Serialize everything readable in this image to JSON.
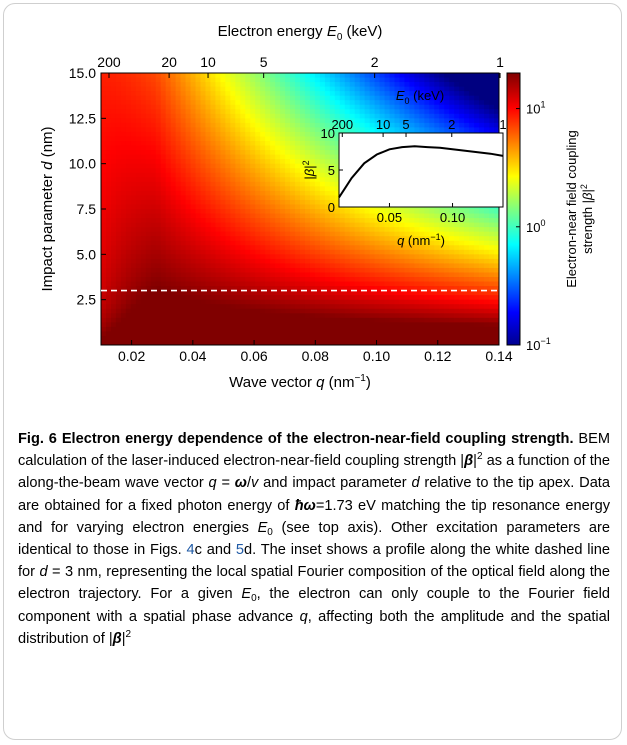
{
  "chart_data": {
    "type": "heatmap",
    "x_axis": {
      "label_prefix": "Wave vector ",
      "symbol": "q",
      "unit": " (nm",
      "unit_exp": "−1",
      "unit_close": ")",
      "range": [
        0.01,
        0.14
      ],
      "ticks": [
        "0.02",
        "0.04",
        "0.06",
        "0.08",
        "0.10",
        "0.12",
        "0.14"
      ]
    },
    "y_axis": {
      "label_prefix": "Impact parameter ",
      "symbol": "d",
      "unit": " (nm)",
      "range": [
        0.0,
        15.0
      ],
      "ticks": [
        "2.5",
        "5.0",
        "7.5",
        "10.0",
        "12.5",
        "15.0"
      ]
    },
    "top_axis": {
      "label_prefix": "Electron energy ",
      "symbol": "E",
      "subscript": "0",
      "unit": " (keV)",
      "ticks": [
        "200",
        "20",
        "10",
        "5",
        "2",
        "1"
      ]
    },
    "colorbar": {
      "label_line1": "Electron-near field coupling",
      "label_line2_prefix": "strength |",
      "label_symbol": "β",
      "label_line2_suffix": "|",
      "label_exp": "2",
      "scale": "log",
      "range": [
        0.1,
        20
      ],
      "ticks": [
        {
          "base": "10",
          "exp": "1"
        },
        {
          "base": "10",
          "exp": "0"
        },
        {
          "base": "10",
          "exp": "−1"
        }
      ]
    },
    "dashed_line": {
      "d": 3.0,
      "color": "#ffffff"
    },
    "inset": {
      "type": "line",
      "x_label_symbol": "q",
      "x_label_unit": " (nm",
      "x_label_exp": "−1",
      "x_label_close": ")",
      "y_label_prefix": "|",
      "y_label_symbol": "β",
      "y_label_suffix": "|",
      "y_label_exp": "2",
      "top_label_symbol": "E",
      "top_label_sub": "0",
      "top_label_unit": " (keV)",
      "top_ticks": [
        "200",
        "10",
        "5",
        "2",
        "1"
      ],
      "x_ticks": [
        "0.05",
        "0.10"
      ],
      "y_ticks": [
        "0",
        "5",
        "10"
      ],
      "xlim": [
        0.01,
        0.14
      ],
      "ylim": [
        0,
        10
      ],
      "x": [
        0.01,
        0.015,
        0.02,
        0.03,
        0.04,
        0.05,
        0.06,
        0.07,
        0.08,
        0.09,
        0.1,
        0.11,
        0.12,
        0.13,
        0.14
      ],
      "y": [
        1.3,
        2.6,
        3.9,
        5.9,
        7.1,
        7.8,
        8.1,
        8.2,
        8.1,
        8.0,
        7.8,
        7.6,
        7.4,
        7.2,
        6.9
      ]
    }
  },
  "caption": {
    "fig_label": "Fig. 6",
    "title": "Electron energy dependence of the electron-near-field coupling strength.",
    "t1": "BEM calculation of the laser-induced electron-near-field coupling strength |",
    "beta": "β",
    "t2": "|",
    "exp2": "2",
    "t3": " as a function of the along-the-beam wave vector ",
    "q": "q",
    "eq": " = ",
    "omega": "ω",
    "slash": "/",
    "v": "v",
    "t4": " and impact parameter ",
    "d": "d",
    "t5": " relative to the tip apex. Data are obtained for a fixed photon energy of ",
    "hbar": "ħω",
    "t6": "=1.73 eV matching the tip resonance energy and for varying electron energies ",
    "E": "E",
    "sub0": "0",
    "t7": " (see top axis). Other excitation parameters are identical to those in Figs. ",
    "ref1": "4",
    "t8": "c and ",
    "ref2": "5",
    "t9": "d. The inset shows a profile along the white dashed line for ",
    "t10": " = 3 nm, representing the local spatial Fourier composition of the optical field along the electron trajectory. For a given ",
    "t11": ", the electron can only couple to the Fourier field component with a spatial phase advance ",
    "t12": ", affecting both the amplitude and the spatial distribution of |"
  }
}
